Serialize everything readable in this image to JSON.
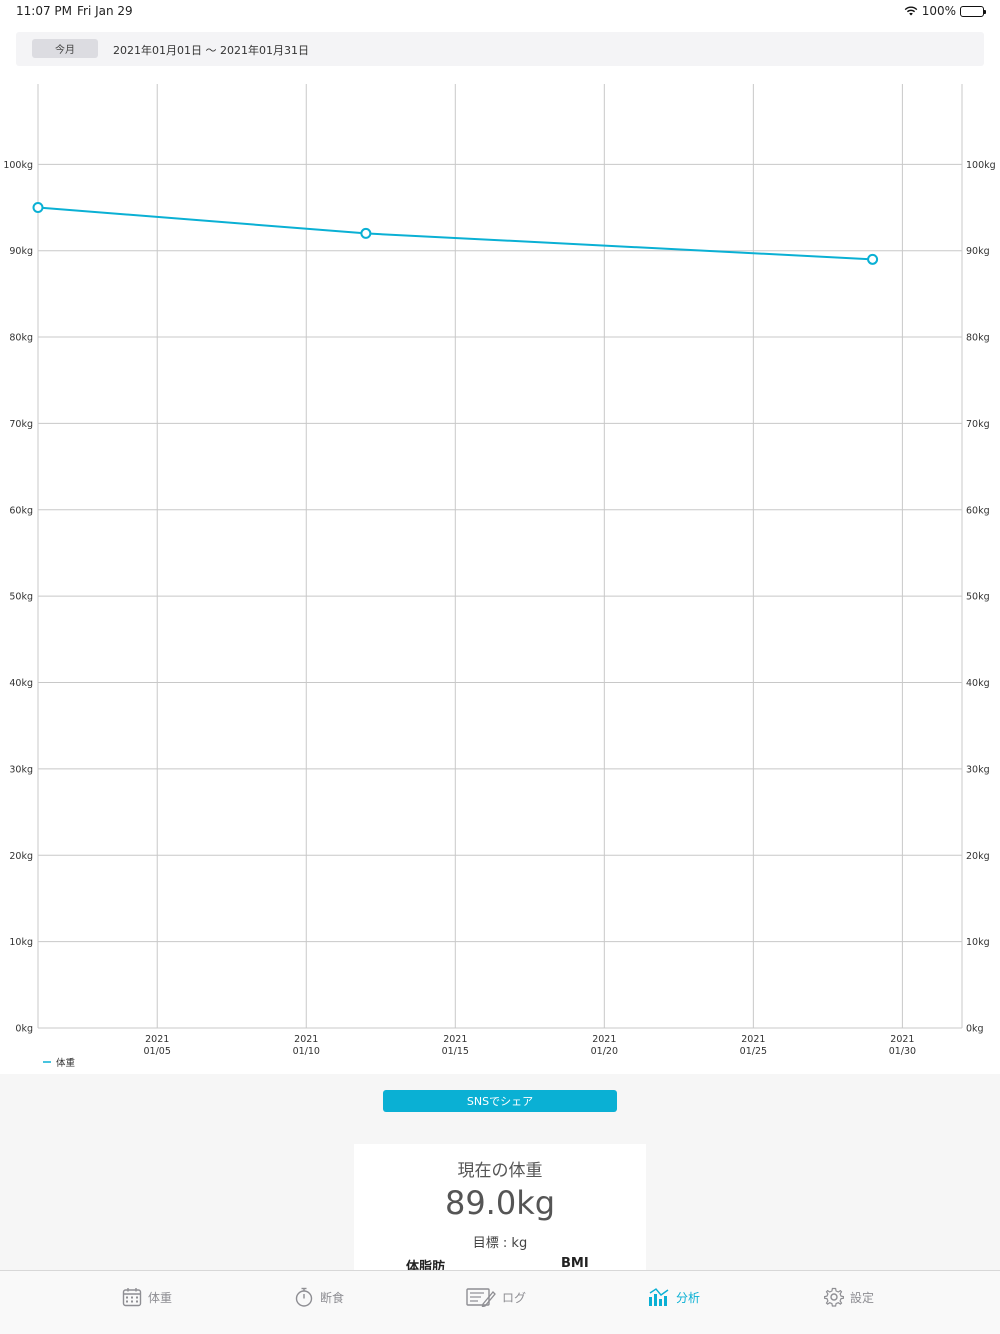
{
  "status": {
    "time": "11:07 PM",
    "date": "Fri Jan 29",
    "battery": "100%"
  },
  "range": {
    "button_label": "今月",
    "text": "2021年01月01日 〜 2021年01月31日"
  },
  "chart_data": {
    "type": "line",
    "title": "",
    "xlabel": "",
    "ylabel": "",
    "x_range": [
      "2021-01-01",
      "2021-01-31"
    ],
    "ylim": [
      0,
      110
    ],
    "y_ticks": [
      0,
      10,
      20,
      30,
      40,
      50,
      60,
      70,
      80,
      90,
      100
    ],
    "y_tick_labels": [
      "0kg",
      "10kg",
      "20kg",
      "30kg",
      "40kg",
      "50kg",
      "60kg",
      "70kg",
      "80kg",
      "90kg",
      "100kg"
    ],
    "x_ticks": [
      "2021-01-05",
      "2021-01-10",
      "2021-01-15",
      "2021-01-20",
      "2021-01-25",
      "2021-01-30"
    ],
    "x_tick_labels": [
      {
        "year": "2021",
        "md": "01/05"
      },
      {
        "year": "2021",
        "md": "01/10"
      },
      {
        "year": "2021",
        "md": "01/15"
      },
      {
        "year": "2021",
        "md": "01/20"
      },
      {
        "year": "2021",
        "md": "01/25"
      },
      {
        "year": "2021",
        "md": "01/30"
      }
    ],
    "grid": true,
    "legend_position": "bottom-left",
    "series": [
      {
        "name": "体重",
        "color": "#0ab0d4",
        "points": [
          {
            "x": "2021-01-01",
            "y": 95.0
          },
          {
            "x": "2021-01-12",
            "y": 92.0
          },
          {
            "x": "2021-01-29",
            "y": 89.0
          }
        ]
      }
    ]
  },
  "share_label": "SNSでシェア",
  "card": {
    "title": "現在の体重",
    "value": "89.0kg",
    "target": "目標 : kg",
    "fat_label": "体脂肪",
    "bmi_label": "BMI"
  },
  "tabs": [
    {
      "label": "体重",
      "icon": "calendar-icon",
      "active": false
    },
    {
      "label": "断食",
      "icon": "stopwatch-icon",
      "active": false
    },
    {
      "label": "ログ",
      "icon": "log-icon",
      "active": false
    },
    {
      "label": "分析",
      "icon": "analysis-icon",
      "active": true
    },
    {
      "label": "設定",
      "icon": "gear-icon",
      "active": false
    }
  ],
  "colors": {
    "accent": "#0ab0d4",
    "grid": "#c8c8c8"
  }
}
